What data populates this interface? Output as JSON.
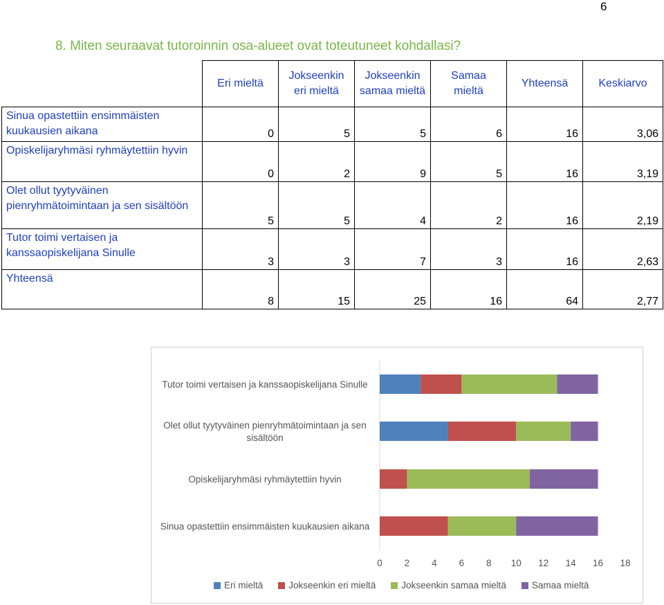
{
  "page_number": "6",
  "title": "8. Miten seuraavat tutoroinnin osa-alueet ovat toteutuneet kohdallasi?",
  "table": {
    "headers": [
      "Eri mieltä",
      "Jokseenkin eri mieltä",
      "Jokseenkin samaa mieltä",
      "Samaa mieltä",
      "Yhteensä",
      "Keskiarvo"
    ],
    "rows": [
      {
        "label": "Sinua opastettiin ensimmäisten kuukausien aikana",
        "values": [
          "0",
          "5",
          "5",
          "6",
          "16",
          "3,06"
        ]
      },
      {
        "label": "Opiskelijaryhmäsi ryhmäytettiin hyvin",
        "values": [
          "0",
          "2",
          "9",
          "5",
          "16",
          "3,19"
        ]
      },
      {
        "label": "Olet ollut tyytyväinen pienryhmätoimintaan ja sen sisältöön",
        "values": [
          "5",
          "5",
          "4",
          "2",
          "16",
          "2,19"
        ]
      },
      {
        "label": "Tutor toimi vertaisen ja kanssaopiskelijana Sinulle",
        "values": [
          "3",
          "3",
          "7",
          "3",
          "16",
          "2,63"
        ]
      },
      {
        "label": "Yhteensä",
        "values": [
          "8",
          "15",
          "25",
          "16",
          "64",
          "2,77"
        ]
      }
    ]
  },
  "chart_data": {
    "type": "bar",
    "orientation": "horizontal",
    "stacked": true,
    "categories": [
      "Tutor toimi vertaisen ja kanssaopiskelijana Sinulle",
      "Olet ollut tyytyväinen pienryhmätoimintaan ja sen sisältöön",
      "Opiskelijaryhmäsi ryhmäytettiin hyvin",
      "Sinua opastettiin ensimmäisten kuukausien aikana"
    ],
    "series": [
      {
        "name": "Eri mieltä",
        "color": "#4f81bd",
        "values": [
          3,
          5,
          0,
          0
        ]
      },
      {
        "name": "Jokseenkin eri mieltä",
        "color": "#c0504d",
        "values": [
          3,
          5,
          2,
          5
        ]
      },
      {
        "name": "Jokseenkin samaa mieltä",
        "color": "#9bbb59",
        "values": [
          7,
          4,
          9,
          5
        ]
      },
      {
        "name": "Samaa mieltä",
        "color": "#8064a2",
        "values": [
          3,
          2,
          5,
          6
        ]
      }
    ],
    "xlim": [
      0,
      18
    ],
    "x_ticks": [
      "0",
      "2",
      "4",
      "6",
      "8",
      "10",
      "12",
      "14",
      "16",
      "18"
    ],
    "grid": false,
    "legend_position": "bottom"
  }
}
